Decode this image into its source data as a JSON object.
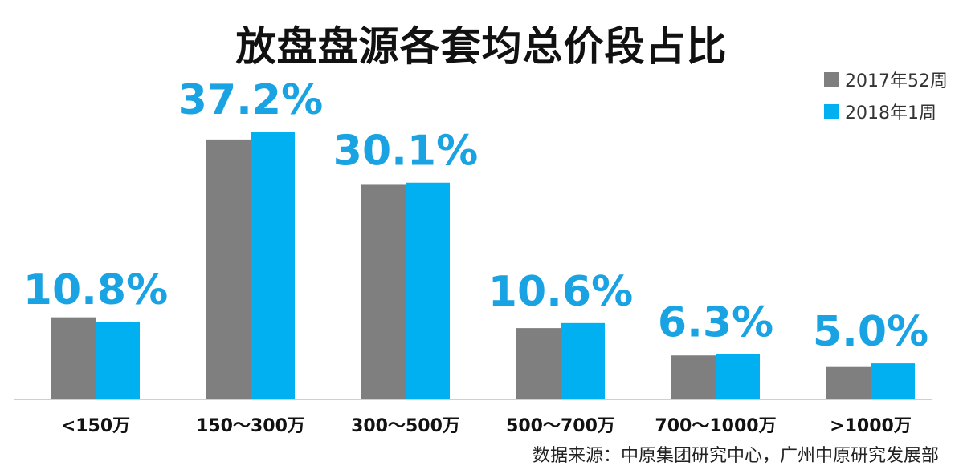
{
  "chart_data": {
    "type": "bar",
    "title": "放盘盘源各套均总价段占比",
    "categories": [
      "<150万",
      "150～300万",
      "300～500万",
      "500～700万",
      "700～1000万",
      ">1000万"
    ],
    "series": [
      {
        "name": "2017年52周",
        "color": "#7f7f7f",
        "values": [
          11.4,
          36.1,
          29.8,
          9.9,
          6.1,
          4.6
        ]
      },
      {
        "name": "2018年1周",
        "color": "#00b0f0",
        "values": [
          10.8,
          37.2,
          30.1,
          10.6,
          6.3,
          5.0
        ]
      }
    ],
    "data_labels": [
      "10.8%",
      "37.2%",
      "30.1%",
      "10.6%",
      "6.3%",
      "5.0%"
    ],
    "label_color": "#1aa3e3",
    "ylim": [
      0,
      37.2
    ],
    "grid": false,
    "legend_position": "top-right",
    "xlabel": "",
    "ylabel": ""
  },
  "source_note": "数据来源：中原集团研究中心，广州中原研究发展部"
}
